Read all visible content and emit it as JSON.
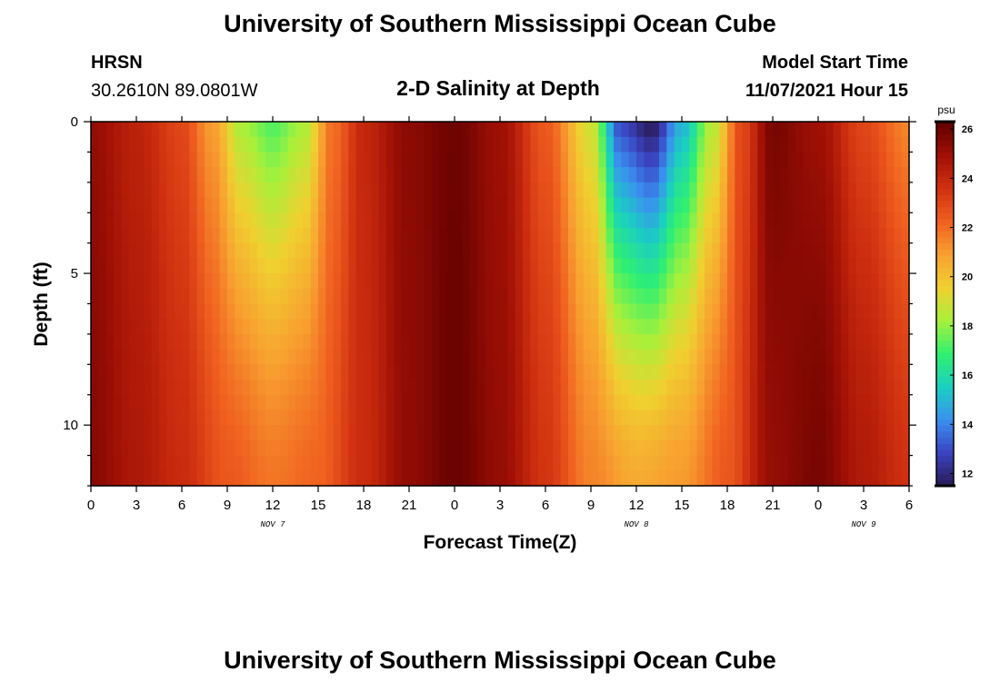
{
  "header": {
    "title": "University of Southern Mississippi Ocean Cube",
    "station": "HRSN",
    "coords": "30.2610N  89.0801W",
    "plot_title": "2-D Salinity at Depth",
    "model_start_label": "Model Start Time",
    "model_start_value": "11/07/2021 Hour 15"
  },
  "footer": {
    "title": "University of Southern Mississippi Ocean Cube"
  },
  "chart_data": {
    "type": "heatmap",
    "title": "2-D Salinity at Depth",
    "xlabel": "Forecast Time(Z)",
    "ylabel": "Depth (ft)",
    "x_start_hour": 0,
    "x_end_hour": 54,
    "x_ticks": [
      {
        "hour": 0,
        "label": "0"
      },
      {
        "hour": 3,
        "label": "3"
      },
      {
        "hour": 6,
        "label": "6"
      },
      {
        "hour": 9,
        "label": "9"
      },
      {
        "hour": 12,
        "label": "12"
      },
      {
        "hour": 15,
        "label": "15"
      },
      {
        "hour": 18,
        "label": "18"
      },
      {
        "hour": 21,
        "label": "21"
      },
      {
        "hour": 24,
        "label": "0"
      },
      {
        "hour": 27,
        "label": "3"
      },
      {
        "hour": 30,
        "label": "6"
      },
      {
        "hour": 33,
        "label": "9"
      },
      {
        "hour": 36,
        "label": "12"
      },
      {
        "hour": 39,
        "label": "15"
      },
      {
        "hour": 42,
        "label": "18"
      },
      {
        "hour": 45,
        "label": "21"
      },
      {
        "hour": 48,
        "label": "0"
      },
      {
        "hour": 51,
        "label": "3"
      },
      {
        "hour": 54,
        "label": "6"
      }
    ],
    "date_labels": [
      {
        "hour": 12,
        "label": "NOV 7"
      },
      {
        "hour": 36,
        "label": "NOV 8"
      },
      {
        "hour": 51,
        "label": "NOV 9"
      }
    ],
    "y_ticks": [
      0,
      5,
      10
    ],
    "ylim": [
      0,
      12
    ],
    "y_reversed": true,
    "colorbar": {
      "unit": "psu",
      "vmin": 11.5,
      "vmax": 26.3,
      "ticks": [
        12,
        14,
        16,
        18,
        20,
        22,
        24,
        26
      ],
      "colormap": [
        "#2a1a55",
        "#3a43c0",
        "#3a90f0",
        "#1ad0c0",
        "#30f070",
        "#a8f03a",
        "#f0d030",
        "#f8a030",
        "#f06020",
        "#d03010",
        "#a01005",
        "#600000"
      ]
    },
    "depths_ft": [
      0.25,
      0.75,
      1.25,
      1.75,
      2.25,
      2.75,
      3.25,
      3.75,
      4.25,
      4.75,
      5.25,
      5.75,
      6.25,
      6.75,
      7.25,
      7.75,
      8.25,
      8.75,
      9.25,
      9.75,
      10.25,
      10.75,
      11.25,
      11.75
    ],
    "surface_salinity_psu": [
      {
        "hour": 0,
        "value": 25.2
      },
      {
        "hour": 3,
        "value": 24.2
      },
      {
        "hour": 6,
        "value": 23.0
      },
      {
        "hour": 8,
        "value": 21.0
      },
      {
        "hour": 10,
        "value": 18.3
      },
      {
        "hour": 12,
        "value": 17.3
      },
      {
        "hour": 14,
        "value": 18.3
      },
      {
        "hour": 16,
        "value": 22.0
      },
      {
        "hour": 18,
        "value": 24.0
      },
      {
        "hour": 21,
        "value": 25.4
      },
      {
        "hour": 24,
        "value": 26.0
      },
      {
        "hour": 27,
        "value": 25.0
      },
      {
        "hour": 30,
        "value": 22.5
      },
      {
        "hour": 33,
        "value": 19.0
      },
      {
        "hour": 35,
        "value": 13.0
      },
      {
        "hour": 37,
        "value": 11.7
      },
      {
        "hour": 39,
        "value": 15.0
      },
      {
        "hour": 41,
        "value": 18.5
      },
      {
        "hour": 43,
        "value": 23.0
      },
      {
        "hour": 45,
        "value": 25.8
      },
      {
        "hour": 48,
        "value": 25.0
      },
      {
        "hour": 51,
        "value": 23.0
      },
      {
        "hour": 54,
        "value": 21.5
      }
    ],
    "bottom_salinity_psu": [
      {
        "hour": 0,
        "value": 25.5
      },
      {
        "hour": 3,
        "value": 24.6
      },
      {
        "hour": 6,
        "value": 23.8
      },
      {
        "hour": 9,
        "value": 22.5
      },
      {
        "hour": 12,
        "value": 21.8
      },
      {
        "hour": 15,
        "value": 22.2
      },
      {
        "hour": 18,
        "value": 23.8
      },
      {
        "hour": 21,
        "value": 25.3
      },
      {
        "hour": 24,
        "value": 26.1
      },
      {
        "hour": 27,
        "value": 25.2
      },
      {
        "hour": 30,
        "value": 23.5
      },
      {
        "hour": 33,
        "value": 21.5
      },
      {
        "hour": 36,
        "value": 20.6
      },
      {
        "hour": 39,
        "value": 21.0
      },
      {
        "hour": 42,
        "value": 22.5
      },
      {
        "hour": 45,
        "value": 25.2
      },
      {
        "hour": 48,
        "value": 25.8
      },
      {
        "hour": 51,
        "value": 24.5
      },
      {
        "hour": 54,
        "value": 23.6
      }
    ]
  }
}
